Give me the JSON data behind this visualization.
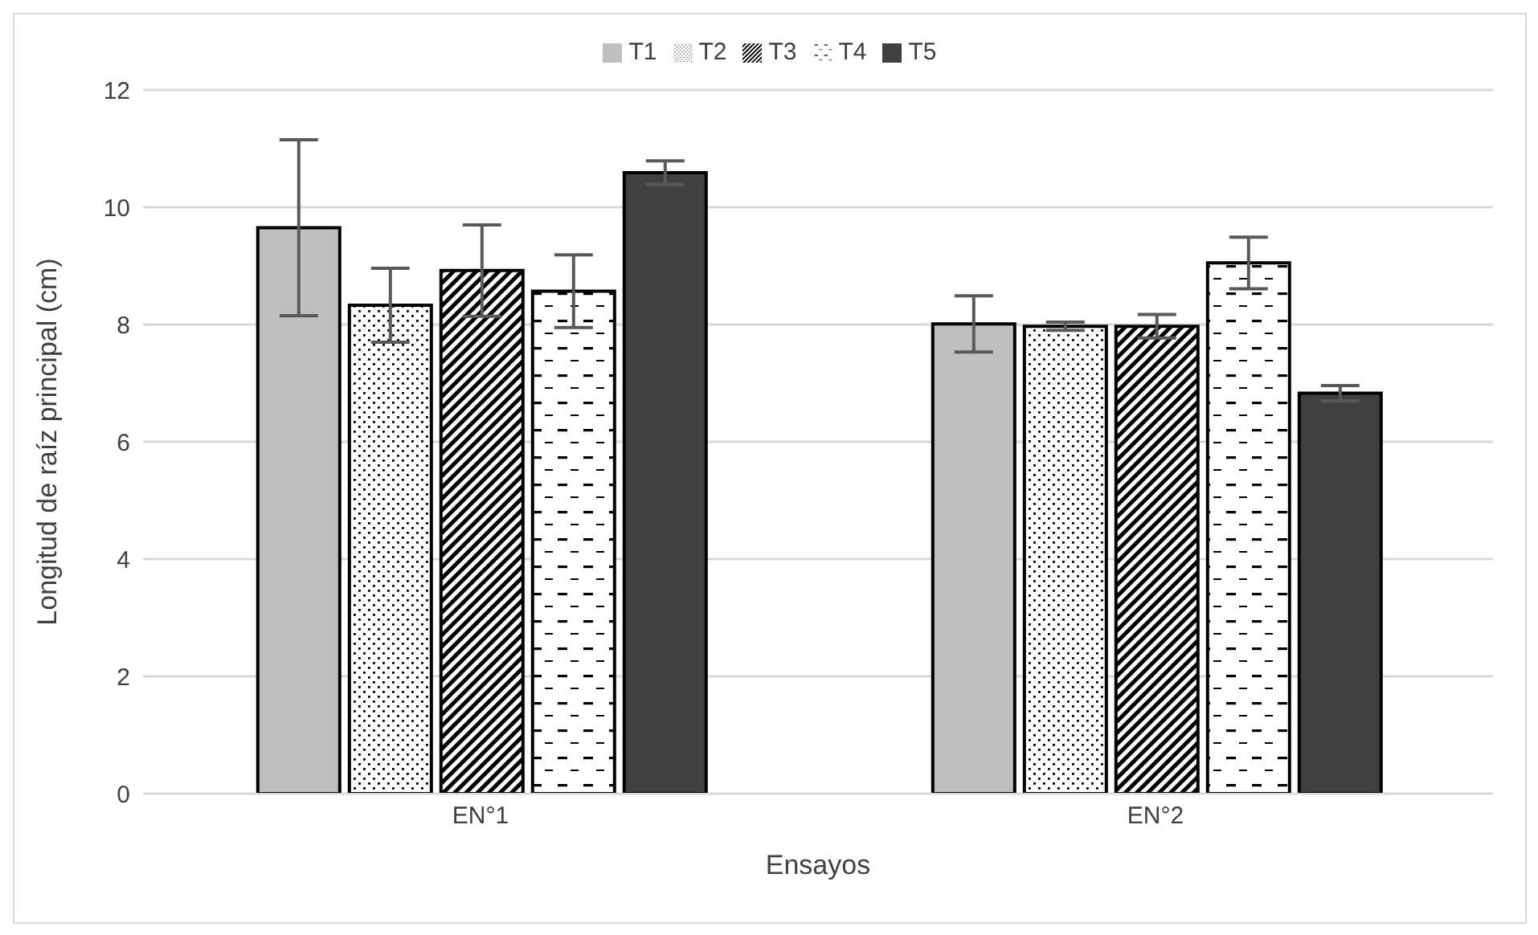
{
  "chart_data": {
    "type": "bar",
    "xlabel": "Ensayos",
    "ylabel": "Longitud de raíz principal (cm)",
    "categories": [
      "EN°1",
      "EN°2"
    ],
    "series": [
      {
        "name": "T1",
        "color": "#bfbfbf",
        "values": [
          9.65,
          8.01
        ],
        "errors": [
          1.5,
          0.48
        ]
      },
      {
        "name": "T2",
        "color": "#000000",
        "values": [
          8.33,
          7.97
        ],
        "errors": [
          0.63,
          0.07
        ]
      },
      {
        "name": "T3",
        "color": "#000000",
        "values": [
          8.92,
          7.97
        ],
        "errors": [
          0.78,
          0.2
        ]
      },
      {
        "name": "T4",
        "color": "#000000",
        "values": [
          8.57,
          9.05
        ],
        "errors": [
          0.62,
          0.44
        ]
      },
      {
        "name": "T5",
        "color": "#404040",
        "values": [
          10.59,
          6.83
        ],
        "errors": [
          0.2,
          0.13
        ]
      }
    ],
    "ylim": [
      0,
      12
    ],
    "yticks": [
      0,
      2,
      4,
      6,
      8,
      10,
      12
    ],
    "grid": "y",
    "legend": "top"
  }
}
